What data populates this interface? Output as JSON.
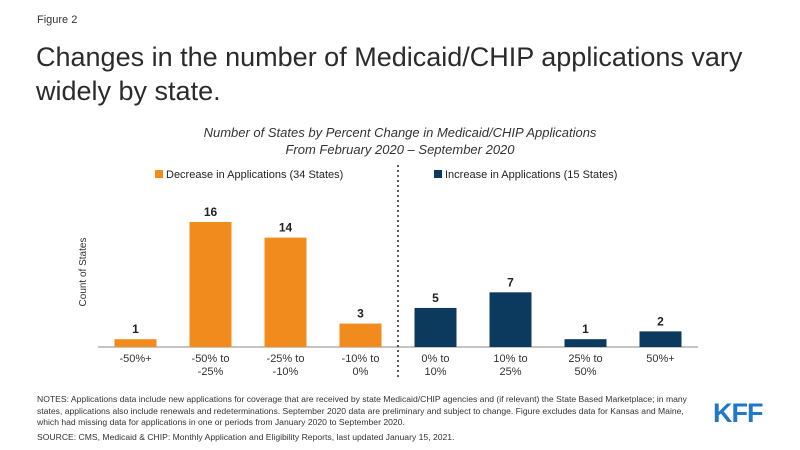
{
  "figure_label": "Figure 2",
  "title": "Changes in the number of Medicaid/CHIP applications vary widely by state.",
  "chart_data": {
    "type": "bar",
    "title": "Number of States by Percent Change in Medicaid/CHIP Applications",
    "subtitle": "From February 2020 – September 2020",
    "ylabel": "Count of States",
    "xlabel": "",
    "ylim": [
      0,
      16
    ],
    "grid": false,
    "categories": [
      [
        "-50%+"
      ],
      [
        "-50% to",
        "-25%"
      ],
      [
        "-25% to",
        "-10%"
      ],
      [
        "-10% to",
        "0%"
      ],
      [
        "0% to",
        "10%"
      ],
      [
        "10% to",
        "25%"
      ],
      [
        "25% to",
        "50%"
      ],
      [
        "50%+"
      ]
    ],
    "values": [
      1,
      16,
      14,
      3,
      5,
      7,
      1,
      2
    ],
    "series": [
      {
        "name": "Decrease in Applications (34 States)",
        "color": "#f28b1e",
        "indices": [
          0,
          1,
          2,
          3
        ]
      },
      {
        "name": "Increase in Applications (15 States)",
        "color": "#0c3a5f",
        "indices": [
          4,
          5,
          6,
          7
        ]
      }
    ],
    "legend": "top",
    "divider": "dotted line between decrease and increase groups"
  },
  "notes": "NOTES: Applications data include new applications for coverage that are received by state Medicaid/CHIP agencies and (if relevant) the State Based Marketplace; in many states, applications also include renewals and redeterminations. September 2020 data are preliminary and subject to change. Figure excludes data for Kansas and Maine, which had missing data for applications in one or periods from January 2020 to September 2020.",
  "source": "SOURCE: CMS, Medicaid & CHIP: Monthly Application and Eligibility Reports, last updated January 15, 2021.",
  "logo_text": "KFF"
}
